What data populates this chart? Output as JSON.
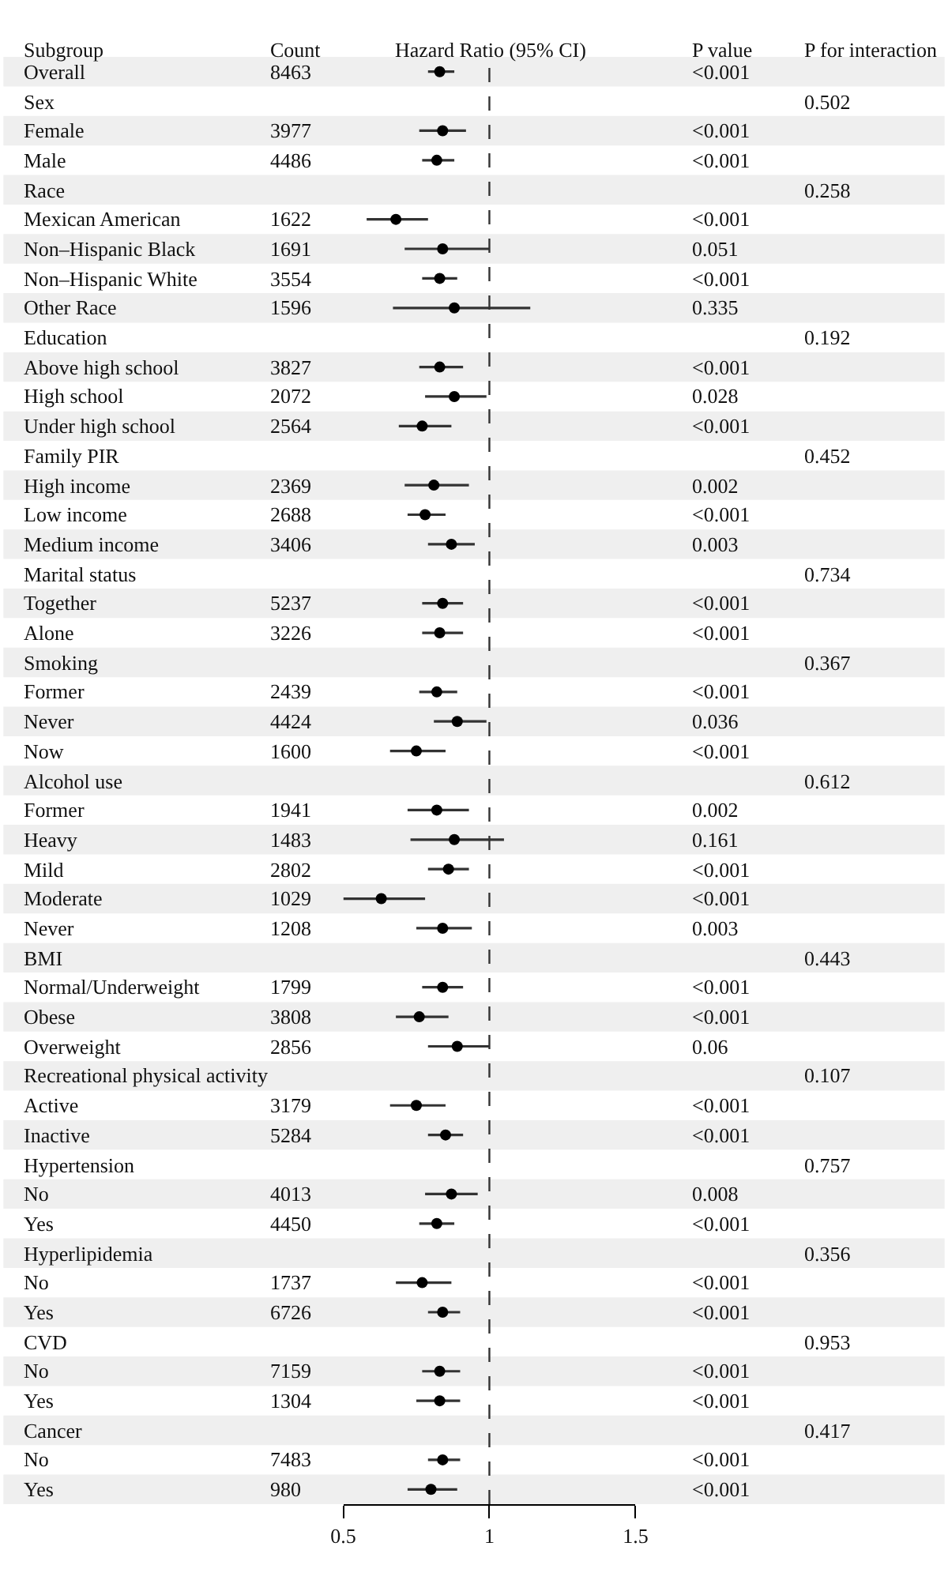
{
  "chart_data": {
    "type": "scatter",
    "orientation": "horizontal",
    "title": "Hazard Ratio (95% CI)",
    "ylabel": "Subgroup",
    "annotations": [
      "Count",
      "P value",
      "P for interaction"
    ],
    "categories": [
      "Overall",
      "Sex",
      "Female",
      "Male",
      "Race",
      "Mexican American",
      "Non–Hispanic Black",
      "Non–Hispanic White",
      "Other Race",
      "Education",
      "Above high school",
      "High school",
      "Under high school",
      "Family PIR",
      "High income",
      "Low income",
      "Medium income",
      "Marital status",
      "Together",
      "Alone",
      "Smoking",
      "Former",
      "Never",
      "Now",
      "Alcohol use",
      "Former",
      "Heavy",
      "Mild",
      "Moderate",
      "Never",
      "BMI",
      "Normal/Underweight",
      "Obese",
      "Overweight",
      "Recreational physical activity",
      "Active",
      "Inactive",
      "Hypertension",
      "No",
      "Yes",
      "Hyperlipidemia",
      "No",
      "Yes",
      "CVD",
      "No",
      "Yes",
      "Cancer",
      "No",
      "Yes"
    ],
    "values": [
      0.83,
      null,
      0.84,
      0.82,
      null,
      0.68,
      0.84,
      0.83,
      0.88,
      null,
      0.83,
      0.88,
      0.77,
      null,
      0.81,
      0.78,
      0.87,
      null,
      0.84,
      0.83,
      null,
      0.82,
      0.89,
      0.75,
      null,
      0.82,
      0.88,
      0.86,
      0.63,
      0.84,
      null,
      0.84,
      0.76,
      0.89,
      null,
      0.75,
      0.85,
      null,
      0.87,
      0.82,
      null,
      0.77,
      0.84,
      null,
      0.83,
      0.83,
      null,
      0.84,
      0.8
    ],
    "errors": [
      [
        0.79,
        0.88
      ],
      null,
      [
        0.76,
        0.92
      ],
      [
        0.77,
        0.88
      ],
      null,
      [
        0.58,
        0.79
      ],
      [
        0.71,
        1.0
      ],
      [
        0.77,
        0.89
      ],
      [
        0.67,
        1.14
      ],
      null,
      [
        0.76,
        0.91
      ],
      [
        0.78,
        0.99
      ],
      [
        0.69,
        0.87
      ],
      null,
      [
        0.71,
        0.93
      ],
      [
        0.72,
        0.85
      ],
      [
        0.79,
        0.95
      ],
      null,
      [
        0.77,
        0.91
      ],
      [
        0.77,
        0.91
      ],
      null,
      [
        0.76,
        0.89
      ],
      [
        0.81,
        0.99
      ],
      [
        0.66,
        0.85
      ],
      null,
      [
        0.72,
        0.93
      ],
      [
        0.73,
        1.05
      ],
      [
        0.79,
        0.93
      ],
      [
        0.5,
        0.78
      ],
      [
        0.75,
        0.94
      ],
      null,
      [
        0.77,
        0.91
      ],
      [
        0.68,
        0.86
      ],
      [
        0.79,
        1.0
      ],
      null,
      [
        0.66,
        0.85
      ],
      [
        0.79,
        0.91
      ],
      null,
      [
        0.78,
        0.96
      ],
      [
        0.76,
        0.88
      ],
      null,
      [
        0.68,
        0.87
      ],
      [
        0.79,
        0.9
      ],
      null,
      [
        0.77,
        0.9
      ],
      [
        0.75,
        0.9
      ],
      null,
      [
        0.79,
        0.9
      ],
      [
        0.72,
        0.89
      ]
    ],
    "cell_labels": [
      [
        "8463",
        "<0.001",
        null
      ],
      [
        null,
        null,
        "0.502"
      ],
      [
        "3977",
        "<0.001",
        null
      ],
      [
        "4486",
        "<0.001",
        null
      ],
      [
        null,
        null,
        "0.258"
      ],
      [
        "1622",
        "<0.001",
        null
      ],
      [
        "1691",
        "0.051",
        null
      ],
      [
        "3554",
        "<0.001",
        null
      ],
      [
        "1596",
        "0.335",
        null
      ],
      [
        null,
        null,
        "0.192"
      ],
      [
        "3827",
        "<0.001",
        null
      ],
      [
        "2072",
        "0.028",
        null
      ],
      [
        "2564",
        "<0.001",
        null
      ],
      [
        null,
        null,
        "0.452"
      ],
      [
        "2369",
        "0.002",
        null
      ],
      [
        "2688",
        "<0.001",
        null
      ],
      [
        "3406",
        "0.003",
        null
      ],
      [
        null,
        null,
        "0.734"
      ],
      [
        "5237",
        "<0.001",
        null
      ],
      [
        "3226",
        "<0.001",
        null
      ],
      [
        null,
        null,
        "0.367"
      ],
      [
        "2439",
        "<0.001",
        null
      ],
      [
        "4424",
        "0.036",
        null
      ],
      [
        "1600",
        "<0.001",
        null
      ],
      [
        null,
        null,
        "0.612"
      ],
      [
        "1941",
        "0.002",
        null
      ],
      [
        "1483",
        "0.161",
        null
      ],
      [
        "2802",
        "<0.001",
        null
      ],
      [
        "1029",
        "<0.001",
        null
      ],
      [
        "1208",
        "0.003",
        null
      ],
      [
        null,
        null,
        "0.443"
      ],
      [
        "1799",
        "<0.001",
        null
      ],
      [
        "3808",
        "<0.001",
        null
      ],
      [
        "2856",
        "0.06",
        null
      ],
      [
        null,
        null,
        "0.107"
      ],
      [
        "3179",
        "<0.001",
        null
      ],
      [
        "5284",
        "<0.001",
        null
      ],
      [
        null,
        null,
        "0.757"
      ],
      [
        "4013",
        "0.008",
        null
      ],
      [
        "4450",
        "<0.001",
        null
      ],
      [
        null,
        null,
        "0.356"
      ],
      [
        "1737",
        "<0.001",
        null
      ],
      [
        "6726",
        "<0.001",
        null
      ],
      [
        null,
        null,
        "0.953"
      ],
      [
        "7159",
        "<0.001",
        null
      ],
      [
        "1304",
        "<0.001",
        null
      ],
      [
        null,
        null,
        "0.417"
      ],
      [
        "7483",
        "<0.001",
        null
      ],
      [
        "980",
        "<0.001",
        null
      ]
    ],
    "color": "#000000",
    "marker": "circle",
    "xlim": [
      0.5,
      1.5
    ],
    "xticks": [
      0.5,
      1,
      1.5
    ],
    "ref_lines": [
      {
        "axis": "x",
        "value": 1,
        "line_style": "dashed",
        "color": "#333333"
      }
    ],
    "grid": false,
    "legend": false
  }
}
